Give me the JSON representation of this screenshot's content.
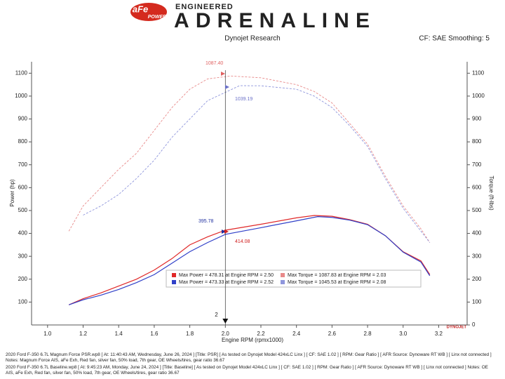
{
  "header": {
    "brand": "aFe",
    "brand_sub": "POWER",
    "tagline": "ENGINEERED",
    "title": "ADRENALINE"
  },
  "chart_data": {
    "type": "line",
    "title": "Dynojet Research",
    "subtitle": "CF: SAE Smoothing: 5",
    "x_label": "Engine RPM (rpmx1000)",
    "y_label": "Power (hp)",
    "y2_label": "Torque (ft-lbs)",
    "brand_mark": "DYNOJET",
    "xlim": [
      0.91,
      3.36
    ],
    "xticks": [
      {
        "value": 1.0,
        "label": "1.0"
      },
      1.2,
      1.4,
      1.6,
      1.8,
      {
        "value": 2.0,
        "label": "2.0"
      },
      2.2,
      2.4,
      2.6,
      2.8,
      {
        "value": 3.0,
        "label": "3.0"
      },
      3.2
    ],
    "ylim": [
      0,
      1150
    ],
    "yticks": [
      100,
      200,
      300,
      400,
      500,
      600,
      700,
      800,
      900,
      1000,
      1100
    ],
    "y2lim": [
      0,
      1150
    ],
    "y2ticks": [
      0,
      100,
      200,
      300,
      400,
      500,
      600,
      700,
      800,
      900,
      1000,
      1100
    ],
    "cursor": 2,
    "series": [
      {
        "name": "Max Power = 478.31 at Engine RPM = 2.50",
        "color": "#e02828",
        "style": "solid",
        "x": [
          1.12,
          1.2,
          1.3,
          1.4,
          1.5,
          1.6,
          1.7,
          1.8,
          1.9,
          2.0,
          2.2,
          2.4,
          2.5,
          2.6,
          2.7,
          2.8,
          2.9,
          3.0,
          3.1,
          3.15
        ],
        "values": [
          88,
          115,
          140,
          170,
          200,
          240,
          290,
          350,
          385,
          414.08,
          440,
          468,
          478.31,
          475,
          460,
          440,
          390,
          320,
          280,
          220
        ]
      },
      {
        "name": "Max Power = 473.33 at Engine RPM = 2.52",
        "color": "#3040c8",
        "style": "solid",
        "x": [
          1.12,
          1.2,
          1.3,
          1.4,
          1.5,
          1.6,
          1.7,
          1.8,
          1.9,
          2.0,
          2.2,
          2.4,
          2.52,
          2.6,
          2.7,
          2.8,
          2.9,
          3.0,
          3.1,
          3.15
        ],
        "values": [
          88,
          110,
          130,
          155,
          185,
          220,
          270,
          320,
          360,
          395.78,
          425,
          455,
          473.33,
          470,
          458,
          438,
          390,
          318,
          275,
          215
        ]
      },
      {
        "name": "Max Torque = 1087.83 at Engine RPM = 2.03",
        "color": "#e88a8a",
        "style": "dashed",
        "axis": "y2",
        "x": [
          1.12,
          1.2,
          1.3,
          1.4,
          1.5,
          1.6,
          1.7,
          1.8,
          1.9,
          2.03,
          2.2,
          2.4,
          2.5,
          2.6,
          2.7,
          2.8,
          2.9,
          3.0,
          3.1,
          3.15
        ],
        "values": [
          410,
          520,
          600,
          680,
          750,
          850,
          950,
          1030,
          1075,
          1087.83,
          1080,
          1050,
          1020,
          970,
          880,
          790,
          650,
          520,
          420,
          360
        ]
      },
      {
        "name": "Max Torque = 1045.53 at Engine RPM = 2.08",
        "color": "#8f96dc",
        "style": "dashed",
        "axis": "y2",
        "x": [
          1.2,
          1.3,
          1.4,
          1.5,
          1.6,
          1.7,
          1.8,
          1.9,
          2.08,
          2.2,
          2.4,
          2.5,
          2.6,
          2.7,
          2.8,
          2.9,
          3.0,
          3.1,
          3.15
        ],
        "values": [
          480,
          520,
          570,
          640,
          720,
          820,
          900,
          980,
          1045.53,
          1045,
          1030,
          1000,
          950,
          870,
          780,
          640,
          510,
          410,
          360
        ]
      }
    ],
    "annotations": [
      "1087.40",
      "1039.19",
      "395.78",
      "414.08"
    ],
    "notes": [
      "2020 Ford F-350 6.7L  Magnum Force PSR.wp8  [ At: 11:40:43 AM, Wednesday, June 26, 2024 ]  [Title: PSR]  [ As tested on Dynojet Model 424xLC Linx ]  [ CF: SAE 1.02 ]  [ RPM: Gear Ratio ]  [ AFR Source: Dynoware RT WB ]  [ Linx not connected ] Notes: Magnum Force AIS, aFe Exh, Red fan, silver fan, 50% load, 7th gear, OE Wheels/tires, gear ratio 36.67",
      "2020 Ford F-350 6.7L Baseline.wp8  [ At: 9:45:23 AM, Monday, June 24, 2024 ]  [Title: Baseline]  [ As tested on Dynojet Model 424xLC Linx ]  [ CF: SAE 1.02 ]  [ RPM: Gear Ratio ]  [ AFR Source: Dynoware RT WB ]  [ Linx not connected ] Notes: OE AIS, aFe Exh, Red fan, silver fan, 50% load, 7th gear, OE Wheels/tires, gear ratio 36.67"
    ]
  }
}
